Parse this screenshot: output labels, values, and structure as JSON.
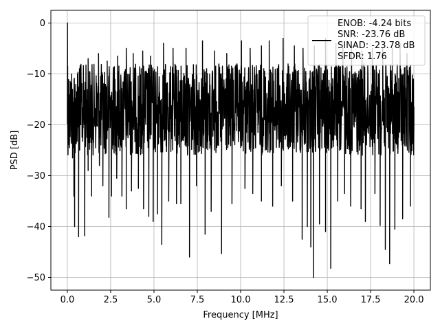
{
  "chart_data": {
    "type": "line",
    "title": "",
    "xlabel": "Frequency [MHz]",
    "ylabel": "PSD [dB]",
    "xlim": [
      -0.95,
      20.95
    ],
    "ylim": [
      -52.5,
      2.5
    ],
    "xticks": [
      0.0,
      2.5,
      5.0,
      7.5,
      10.0,
      12.5,
      15.0,
      17.5,
      20.0
    ],
    "xtick_labels": [
      "0.0",
      "2.5",
      "5.0",
      "7.5",
      "10.0",
      "12.5",
      "15.0",
      "17.5",
      "20.0"
    ],
    "yticks": [
      0,
      -10,
      -20,
      -30,
      -40,
      -50
    ],
    "ytick_labels": [
      "0",
      "−10",
      "−20",
      "−30",
      "−40",
      "−50"
    ],
    "grid": true,
    "legend_position": "top-right",
    "series": [
      {
        "color": "#000000",
        "noise": {
          "x_start": 0.0,
          "x_end": 20.0,
          "points": 1600,
          "band_top": -8,
          "band_bottom": -26
        },
        "points": [
          [
            0.0,
            -16.5
          ],
          [
            0.01,
            0.0
          ],
          [
            0.02,
            -8.5
          ],
          [
            0.05,
            -12.0
          ],
          [
            0.12,
            -24.5
          ],
          [
            0.3,
            -26.5
          ],
          [
            0.38,
            -34.0
          ],
          [
            0.42,
            -40.0
          ],
          [
            0.65,
            -42.0
          ],
          [
            1.0,
            -41.8
          ],
          [
            1.2,
            -29.0
          ],
          [
            1.4,
            -34.0
          ],
          [
            1.85,
            -28.0
          ],
          [
            2.05,
            -32.0
          ],
          [
            2.4,
            -38.2
          ],
          [
            2.55,
            -34.0
          ],
          [
            2.85,
            -30.5
          ],
          [
            3.15,
            -34.0
          ],
          [
            3.4,
            -36.5
          ],
          [
            3.7,
            -33.0
          ],
          [
            4.1,
            -32.5
          ],
          [
            4.4,
            -36.5
          ],
          [
            4.7,
            -38.0
          ],
          [
            4.95,
            -39.0
          ],
          [
            5.2,
            -37.5
          ],
          [
            5.45,
            -43.5
          ],
          [
            5.85,
            -35.0
          ],
          [
            6.3,
            -35.5
          ],
          [
            6.55,
            -35.5
          ],
          [
            7.05,
            -46.0
          ],
          [
            7.45,
            -32.0
          ],
          [
            7.95,
            -41.5
          ],
          [
            8.3,
            -37.0
          ],
          [
            8.9,
            -45.3
          ],
          [
            9.5,
            -35.5
          ],
          [
            10.25,
            -32.5
          ],
          [
            10.7,
            -33.5
          ],
          [
            11.2,
            -35.0
          ],
          [
            11.85,
            -36.0
          ],
          [
            12.35,
            -32.0
          ],
          [
            13.0,
            -35.0
          ],
          [
            13.55,
            -42.5
          ],
          [
            13.85,
            -40.0
          ],
          [
            14.05,
            -44.0
          ],
          [
            14.2,
            -50.0
          ],
          [
            14.55,
            -39.5
          ],
          [
            14.9,
            -41.0
          ],
          [
            15.2,
            -48.2
          ],
          [
            15.6,
            -35.0
          ],
          [
            16.0,
            -33.5
          ],
          [
            16.35,
            -36.0
          ],
          [
            16.95,
            -36.5
          ],
          [
            17.2,
            -39.0
          ],
          [
            17.75,
            -33.5
          ],
          [
            18.05,
            -39.8
          ],
          [
            18.35,
            -44.5
          ],
          [
            18.6,
            -47.3
          ],
          [
            18.9,
            -40.5
          ],
          [
            19.35,
            -38.5
          ],
          [
            19.8,
            -36.0
          ],
          [
            20.0,
            -16.5
          ]
        ],
        "peaks": [
          [
            0.7,
            -9.0
          ],
          [
            1.2,
            -7.0
          ],
          [
            1.8,
            -6.0
          ],
          [
            2.3,
            -7.5
          ],
          [
            2.9,
            -6.5
          ],
          [
            3.4,
            -5.0
          ],
          [
            3.8,
            -6.0
          ],
          [
            4.35,
            -5.5
          ],
          [
            4.8,
            -6.5
          ],
          [
            5.55,
            -4.0
          ],
          [
            6.1,
            -5.0
          ],
          [
            6.85,
            -5.0
          ],
          [
            7.8,
            -3.5
          ],
          [
            8.5,
            -5.5
          ],
          [
            9.2,
            -6.0
          ],
          [
            10.05,
            -3.5
          ],
          [
            10.55,
            -5.0
          ],
          [
            11.2,
            -4.5
          ],
          [
            11.65,
            -3.5
          ],
          [
            12.45,
            -3.0
          ],
          [
            13.1,
            -4.5
          ],
          [
            13.6,
            -5.0
          ],
          [
            14.25,
            -4.5
          ],
          [
            14.9,
            -3.0
          ],
          [
            15.5,
            -4.0
          ],
          [
            15.9,
            -5.0
          ],
          [
            16.4,
            -4.5
          ],
          [
            17.0,
            -5.5
          ],
          [
            17.6,
            -5.0
          ],
          [
            18.2,
            -5.0
          ],
          [
            18.75,
            -5.0
          ],
          [
            19.2,
            -4.0
          ],
          [
            19.6,
            -6.0
          ]
        ]
      }
    ],
    "legend": {
      "lines": [
        "ENOB: -4.24 bits",
        "SNR: -23.76 dB",
        "SINAD: -23.78 dB",
        "SFDR: 1.76"
      ]
    }
  }
}
